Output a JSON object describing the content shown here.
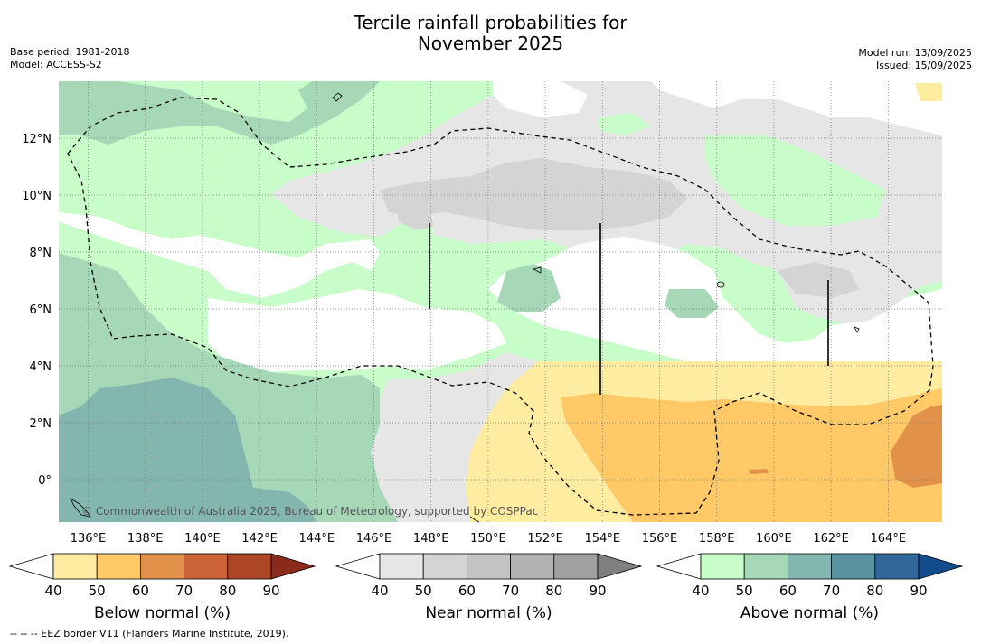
{
  "title_line1": "Tercile rainfall probabilities for",
  "title_line2": "November 2025",
  "base_period": "Base period: 1981-2018",
  "model": "Model: ACCESS-S2",
  "model_run": "Model run: 13/09/2025",
  "issued": "Issued: 15/09/2025",
  "copyright": "© Commonwealth of Australia 2025, Bureau of Meteorology, supported by COSPPac",
  "footnote": "--  --  -- EEZ border V11 (Flanders Marine Institute, 2019).",
  "x_ticks": [
    "136°E",
    "138°E",
    "140°E",
    "142°E",
    "144°E",
    "146°E",
    "148°E",
    "150°E",
    "152°E",
    "154°E",
    "156°E",
    "158°E",
    "160°E",
    "162°E",
    "164°E"
  ],
  "y_ticks": [
    "12°N",
    "10°N",
    "8°N",
    "6°N",
    "4°N",
    "2°N",
    "0°"
  ],
  "colorbars": [
    {
      "label": "Below normal (%)",
      "ticks": [
        "40",
        "50",
        "60",
        "70",
        "80",
        "90"
      ],
      "colors": [
        "#ffffff",
        "#feeca0",
        "#fec966",
        "#e1914a",
        "#cb6337",
        "#ad4627",
        "#8b2a1a"
      ]
    },
    {
      "label": "Near normal (%)",
      "ticks": [
        "40",
        "50",
        "60",
        "70",
        "80",
        "90"
      ],
      "colors": [
        "#ffffff",
        "#e6e6e6",
        "#d4d4d4",
        "#c4c4c4",
        "#b1b1b1",
        "#a0a0a0",
        "#808080"
      ]
    },
    {
      "label": "Above normal (%)",
      "ticks": [
        "40",
        "50",
        "60",
        "70",
        "80",
        "90"
      ],
      "colors": [
        "#ffffff",
        "#c8fcc8",
        "#a6d8b8",
        "#84b6b0",
        "#5b92a2",
        "#31679a",
        "#134c8c"
      ]
    }
  ]
}
